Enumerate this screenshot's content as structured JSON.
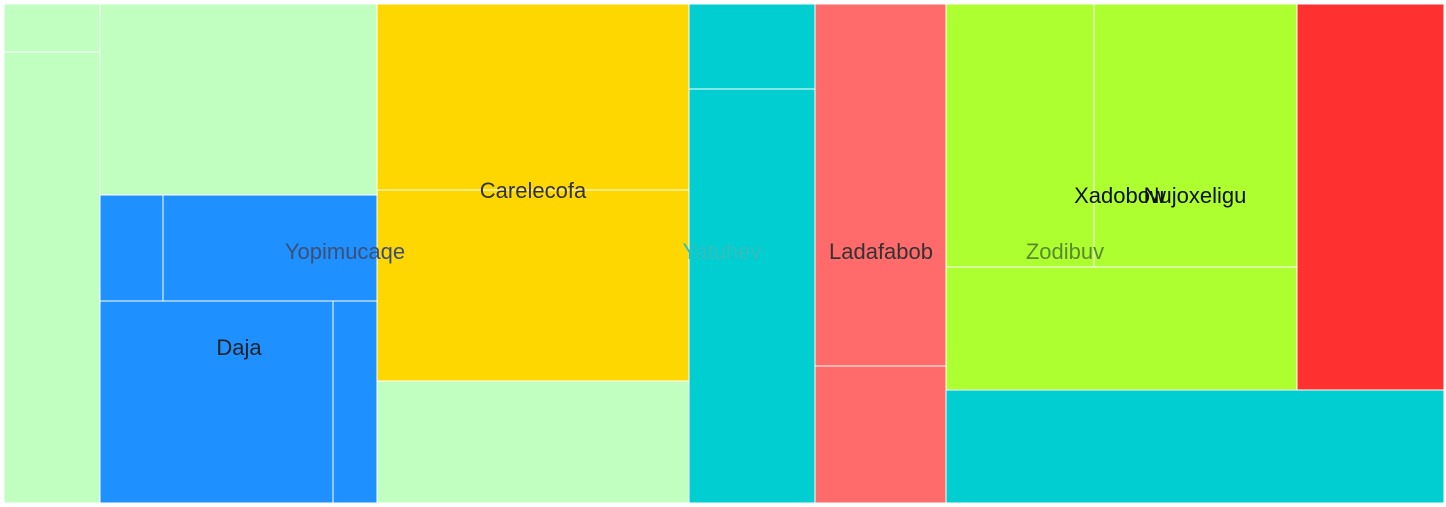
{
  "chart_data": {
    "type": "treemap",
    "title": "",
    "labels": [
      "Yopimucaqe",
      "Daja",
      "Carelecofa",
      "Yatuhev",
      "Ladafabob",
      "Zodibuv",
      "Xadobow",
      "Nujoxeligu"
    ],
    "colors": {
      "lightgreen": "#C1FFC1",
      "blue": "#1E90FF",
      "gold": "#FFD700",
      "cyan": "#00CED1",
      "salmon": "#FF6A6A",
      "lime": "#ADFF2F",
      "red": "#FF3030",
      "divider": "#ffffff"
    },
    "tiles": [
      {
        "id": "t1",
        "label": "",
        "color": "lightgreen",
        "value": 4.72
      },
      {
        "id": "t2",
        "label": "",
        "color": "lightgreen",
        "value": 43.11
      },
      {
        "id": "t3",
        "label": "",
        "color": "lightgreen",
        "value": 52.52
      },
      {
        "id": "t4",
        "label": "",
        "color": "blue",
        "value": 6.71
      },
      {
        "id": "t5",
        "label": "",
        "color": "blue",
        "value": 22.93
      },
      {
        "id": "t6",
        "label": "Daja",
        "color": "blue",
        "value": 46.87
      },
      {
        "id": "t7",
        "label": "",
        "color": "blue",
        "value": 8.9
      },
      {
        "id": "t8",
        "label": "",
        "color": "gold",
        "value": 58.45
      },
      {
        "id": "t9",
        "label": "",
        "color": "gold",
        "value": 59.71
      },
      {
        "id": "t10",
        "label": "",
        "color": "lightgreen",
        "value": 37.55
      },
      {
        "id": "t11",
        "label": "",
        "color": "cyan",
        "value": 10.77
      },
      {
        "id": "t12",
        "label": "",
        "color": "cyan",
        "value": 51.95
      },
      {
        "id": "t13",
        "label": "",
        "color": "salmon",
        "value": 47.49
      },
      {
        "id": "t14",
        "label": "",
        "color": "salmon",
        "value": 17.58
      },
      {
        "id": "t15",
        "label": "",
        "color": "lime",
        "value": 39.06
      },
      {
        "id": "t16",
        "label": "",
        "color": "lime",
        "value": 53.47
      },
      {
        "id": "t17",
        "label": "",
        "color": "lime",
        "value": 43.09
      },
      {
        "id": "t18",
        "label": "",
        "color": "red",
        "value": 57.34
      },
      {
        "id": "t19",
        "label": "",
        "color": "cyan",
        "value": 56.08
      }
    ],
    "overlay_labels": [
      {
        "text": "Carelecofa",
        "color": "#333333"
      },
      {
        "text": "Yopimucaqe",
        "color": "#3f4f73"
      },
      {
        "text": "Yatuhev",
        "color": "#33bdbf"
      },
      {
        "text": "Ladafabob",
        "color": "#333333"
      },
      {
        "text": "Zodibuv",
        "color": "#5a8a30"
      },
      {
        "text": "Xadobow",
        "color": "#111111"
      },
      {
        "text": "Nujoxeligu",
        "color": "#111111"
      }
    ]
  }
}
